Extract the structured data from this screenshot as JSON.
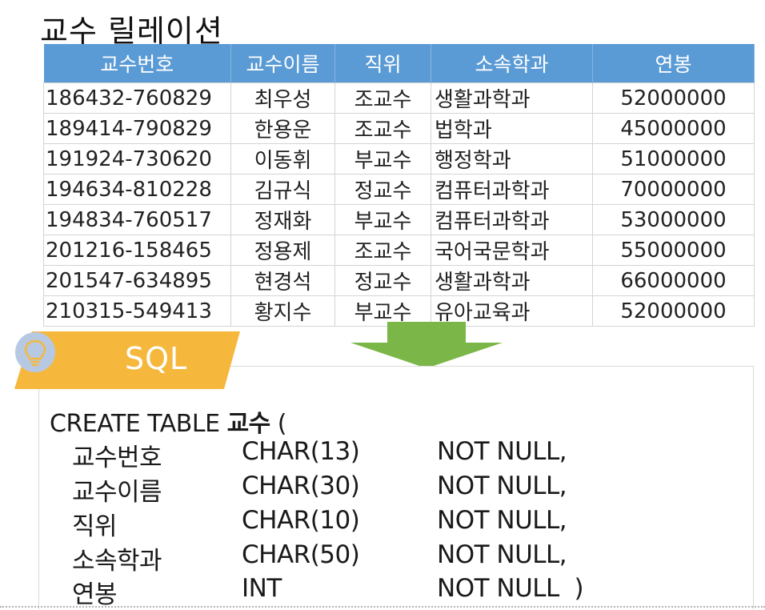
{
  "title": "교수 릴레이션",
  "table": {
    "headers": [
      "교수번호",
      "교수이름",
      "직위",
      "소속학과",
      "연봉"
    ],
    "rows": [
      [
        "186432-760829",
        "최우성",
        "조교수",
        "생활과학과",
        "52000000"
      ],
      [
        "189414-790829",
        "한용운",
        "조교수",
        "법학과",
        "45000000"
      ],
      [
        "191924-730620",
        "이동휘",
        "부교수",
        "행정학과",
        "51000000"
      ],
      [
        "194634-810228",
        "김규식",
        "정교수",
        "컴퓨터과학과",
        "70000000"
      ],
      [
        "194834-760517",
        "정재화",
        "부교수",
        "컴퓨터과학과",
        "53000000"
      ],
      [
        "201216-158465",
        "정용제",
        "조교수",
        "국어국문학과",
        "55000000"
      ],
      [
        "201547-634895",
        "현경석",
        "정교수",
        "생활과학과",
        "66000000"
      ],
      [
        "210315-549413",
        "황지수",
        "부교수",
        "유아교육과",
        "52000000"
      ]
    ]
  },
  "sql": {
    "label": "SQL",
    "icon": "lightbulb-icon",
    "create_prefix": "CREATE TABLE ",
    "table_name": "교수",
    "open_paren": " (",
    "columns": [
      {
        "name": "교수번호",
        "type": "CHAR(13)",
        "constraint": "NOT NULL,"
      },
      {
        "name": "교수이름",
        "type": "CHAR(30)",
        "constraint": "NOT NULL,"
      },
      {
        "name": "직위",
        "type": "CHAR(10)",
        "constraint": "NOT NULL,"
      },
      {
        "name": "소속학과",
        "type": "CHAR(50)",
        "constraint": "NOT NULL,"
      },
      {
        "name": "연봉",
        "type": "INT",
        "constraint": "NOT NULL  )"
      }
    ]
  },
  "colors": {
    "header_bg": "#5b9bd5",
    "banner": "#f5b83d",
    "arrow": "#7ab648",
    "bulb_circle": "#b7c9e2"
  }
}
